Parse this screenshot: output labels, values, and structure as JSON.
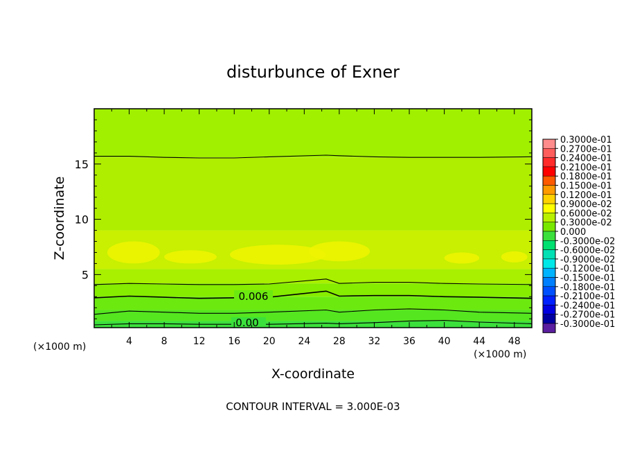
{
  "chart_data": {
    "type": "heatmap",
    "title": "disturbunce of Exner",
    "xlabel": "X-coordinate",
    "ylabel": "Z-coordinate",
    "x_unit": "(×1000 m)",
    "y_unit": "(×1000 m)",
    "xlim": [
      0,
      50
    ],
    "ylim": [
      0.2,
      20
    ],
    "x_ticks": [
      "4",
      "8",
      "12",
      "16",
      "20",
      "24",
      "28",
      "32",
      "36",
      "40",
      "44",
      "48"
    ],
    "y_ticks": [
      "5",
      "10",
      "15"
    ],
    "footer": "CONTOUR INTERVAL = 3.000E-03",
    "contour_labels": [
      "0.006",
      "0.00"
    ],
    "contour_levels": [
      0.0,
      0.003,
      0.006,
      0.009
    ],
    "colorbar": {
      "labels": [
        "0.3000e-01",
        "0.2700e-01",
        "0.2400e-01",
        "0.2100e-01",
        "0.1800e-01",
        "0.1500e-01",
        "0.1200e-01",
        "0.9000e-02",
        "0.6000e-02",
        "0.3000e-02",
        "0.000",
        "-0.3000e-02",
        "-0.6000e-02",
        "-0.9000e-02",
        "-0.1200e-01",
        "-0.1500e-01",
        "-0.1800e-01",
        "-0.2100e-01",
        "-0.2400e-01",
        "-0.2700e-01",
        "-0.3000e-01"
      ],
      "colors": [
        "#ff8c8c",
        "#ff5c5c",
        "#ff2a2a",
        "#ff0000",
        "#ff5a00",
        "#ff9a00",
        "#ffd200",
        "#ffff00",
        "#b8f000",
        "#78e800",
        "#3ce03c",
        "#00e070",
        "#00e0b4",
        "#00e8e8",
        "#00b4ff",
        "#0080ff",
        "#0050ff",
        "#0020ff",
        "#0000e0",
        "#0000a0",
        "#5a1ea0"
      ]
    },
    "bands": [
      {
        "range": [
          0.2,
          0.8
        ],
        "value": 0.0015,
        "color": "#3ce03c"
      },
      {
        "range": [
          0.8,
          1.8
        ],
        "value": 0.0045,
        "color": "#55e620"
      },
      {
        "range": [
          1.8,
          3.0
        ],
        "value": 0.006,
        "color": "#6cea10"
      },
      {
        "range": [
          3.0,
          4.2
        ],
        "value": 0.0075,
        "color": "#86ec00"
      },
      {
        "range": [
          4.2,
          5.5
        ],
        "value": 0.009,
        "color": "#a8f000"
      },
      {
        "range": [
          5.5,
          9.0
        ],
        "value": 0.0105,
        "color": "#c8f000"
      },
      {
        "range": [
          9.0,
          15.6
        ],
        "value": 0.009,
        "color": "#b0ee00"
      },
      {
        "range": [
          15.6,
          20.0
        ],
        "value": 0.0075,
        "color": "#a0f000"
      }
    ],
    "contours": [
      {
        "level": 0.003,
        "z": [
          0.45,
          0.55,
          0.55,
          0.5,
          0.5,
          0.5,
          0.6,
          0.55,
          0.65,
          0.8,
          0.85,
          0.7,
          0.55
        ]
      },
      {
        "level": 0.006,
        "z": [
          1.4,
          1.7,
          1.6,
          1.5,
          1.5,
          1.6,
          1.8,
          1.6,
          1.8,
          1.9,
          1.8,
          1.6,
          1.5
        ]
      },
      {
        "level": 0.006,
        "z": [
          2.9,
          3.05,
          2.95,
          2.85,
          2.9,
          2.95,
          3.5,
          3.05,
          3.1,
          3.1,
          3.0,
          2.95,
          2.85
        ]
      },
      {
        "level": 0.009,
        "z": [
          4.1,
          4.2,
          4.15,
          4.1,
          4.1,
          4.15,
          4.6,
          4.2,
          4.3,
          4.3,
          4.2,
          4.15,
          4.1
        ]
      },
      {
        "level": 0.009,
        "z": [
          15.7,
          15.7,
          15.6,
          15.55,
          15.55,
          15.65,
          15.8,
          15.75,
          15.65,
          15.6,
          15.6,
          15.6,
          15.65
        ]
      }
    ],
    "contour_x": [
      0,
      4,
      8,
      12,
      16,
      20,
      26.5,
      28,
      32,
      36,
      40,
      44,
      50
    ],
    "highlights": [
      {
        "cx": 4.5,
        "cz": 7.0,
        "rx": 3.0,
        "rz": 1.0
      },
      {
        "cx": 11,
        "cz": 6.6,
        "rx": 3.0,
        "rz": 0.6
      },
      {
        "cx": 21,
        "cz": 6.8,
        "rx": 5.5,
        "rz": 0.9
      },
      {
        "cx": 28,
        "cz": 7.1,
        "rx": 3.5,
        "rz": 0.9
      },
      {
        "cx": 42,
        "cz": 6.5,
        "rx": 2.0,
        "rz": 0.5
      },
      {
        "cx": 48,
        "cz": 6.6,
        "rx": 1.5,
        "rz": 0.5
      }
    ]
  }
}
